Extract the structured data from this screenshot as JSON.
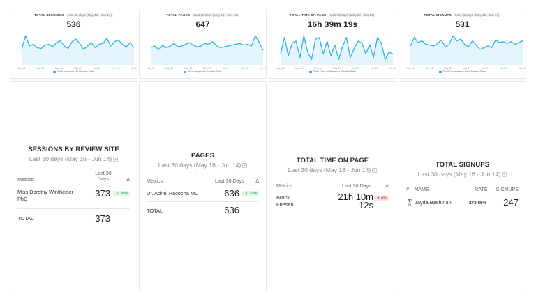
{
  "spark_cards": [
    {
      "title": "TOTAL SESSIONS",
      "period": "Last 30 days (May 16 - Jun 14)",
      "value": "536",
      "legend": "Total Sessions via Review Sites",
      "y_ticks": [
        "",
        "",
        "",
        "",
        ""
      ],
      "x_ticks": [
        "May 16",
        "May 21",
        "May 26",
        "May 31",
        "Jun 5",
        "Jun 10",
        "Jun 14"
      ],
      "series": [
        18,
        34,
        22,
        24,
        20,
        19,
        23,
        24,
        21,
        26,
        28,
        22,
        19,
        27,
        30,
        25,
        18,
        22,
        26,
        20,
        24,
        25,
        31,
        22,
        27,
        29,
        24,
        21,
        26,
        20
      ]
    },
    {
      "title": "TOTAL PAGES",
      "period": "Last 30 days (May 16 - Jun 14)",
      "value": "647",
      "legend": "Total Pages via Review Sites",
      "y_ticks": [
        "",
        "",
        "",
        "",
        ""
      ],
      "x_ticks": [
        "May 16",
        "May 21",
        "May 26",
        "May 31",
        "Jun 5",
        "Jun 10",
        "Jun 14"
      ],
      "series": [
        20,
        22,
        18,
        23,
        20,
        22,
        25,
        21,
        22,
        24,
        26,
        23,
        21,
        22,
        25,
        24,
        27,
        22,
        20,
        21,
        22,
        23,
        24,
        25,
        23,
        24,
        22,
        34,
        26,
        17
      ]
    },
    {
      "title": "TOTAL TIME ON PAGE",
      "period": "Last 30 days (May 16 - Jun 14)",
      "value": "16h 39m 19s",
      "legend": "Total Time on Page via Review Sites",
      "y_ticks": [
        "",
        "",
        "",
        ""
      ],
      "x_ticks": [
        "May 16",
        "May 21",
        "May 26",
        "May 31",
        "Jun 5",
        "Jun 10",
        "Jun 14"
      ],
      "series": [
        12,
        30,
        10,
        24,
        26,
        8,
        32,
        14,
        6,
        28,
        30,
        12,
        26,
        10,
        22,
        6,
        20,
        30,
        8,
        18,
        26,
        24,
        12,
        22,
        8,
        30,
        24,
        6,
        14,
        12
      ]
    },
    {
      "title": "TOTAL SIGNUPS",
      "period": "Last 30 days (May 16 - Jun 14)",
      "value": "531",
      "legend": "Total Conversions from Review Sites",
      "y_ticks": [
        "",
        "",
        "",
        "",
        ""
      ],
      "x_ticks": [
        "May 16",
        "May 21",
        "May 26",
        "May 31",
        "Jun 5",
        "Jun 10",
        "Jun 14"
      ],
      "series": [
        22,
        32,
        26,
        28,
        24,
        23,
        22,
        25,
        29,
        21,
        24,
        34,
        28,
        30,
        24,
        21,
        28,
        23,
        18,
        20,
        22,
        20,
        29,
        26,
        27,
        25,
        27,
        24,
        26,
        28
      ]
    }
  ],
  "tables": [
    {
      "title": "SESSIONS BY REVIEW SITE",
      "period": "Last 30 days (May 16 - Jun 14)",
      "headers": {
        "col1": "Metrics",
        "col2": "Last 30 Days",
        "delta": "Δ"
      },
      "rows": [
        {
          "name": "Miss Dorothy Wintheiser PhD",
          "value": "373",
          "change": "▲ 16%",
          "dir": "up"
        }
      ],
      "total_label": "TOTAL",
      "total_value": "373"
    },
    {
      "title": "PAGES",
      "period": "Last 30 days (May 16 - Jun 14)",
      "headers": {
        "col1": "Metrics",
        "col2": "Last 30 Days",
        "delta": "Δ"
      },
      "rows": [
        {
          "name": "Dr. Adriel Pacocha MD",
          "value": "636",
          "change": "▲ 23%",
          "dir": "up"
        }
      ],
      "total_label": "TOTAL",
      "total_value": "636"
    },
    {
      "title": "TOTAL TIME ON PAGE",
      "period": "Last 30 days (May 16 - Jun 14)",
      "headers": {
        "col1": "Metrics",
        "col2": "Last 30 Days",
        "delta": "Δ"
      },
      "rows": [
        {
          "name": "Brock Friesen",
          "value": "21h 10m 12s",
          "change": "▼ 6%",
          "dir": "down"
        }
      ]
    },
    {
      "title": "TOTAL SIGNUPS",
      "period": "Last 30 days (May 16 - Jun 14)",
      "headers": {
        "hash": "#",
        "name": "NAME",
        "rate": "RATE",
        "signups": "SIGNUPS"
      },
      "rows": [
        {
          "name": "Jayda Bashirian",
          "rate": "273.66%",
          "signups": "247"
        }
      ]
    }
  ],
  "colors": {
    "accent": "#2bb3e0",
    "fill": "#e3f4fb",
    "up": "#2e9e4f",
    "down": "#d94848"
  }
}
